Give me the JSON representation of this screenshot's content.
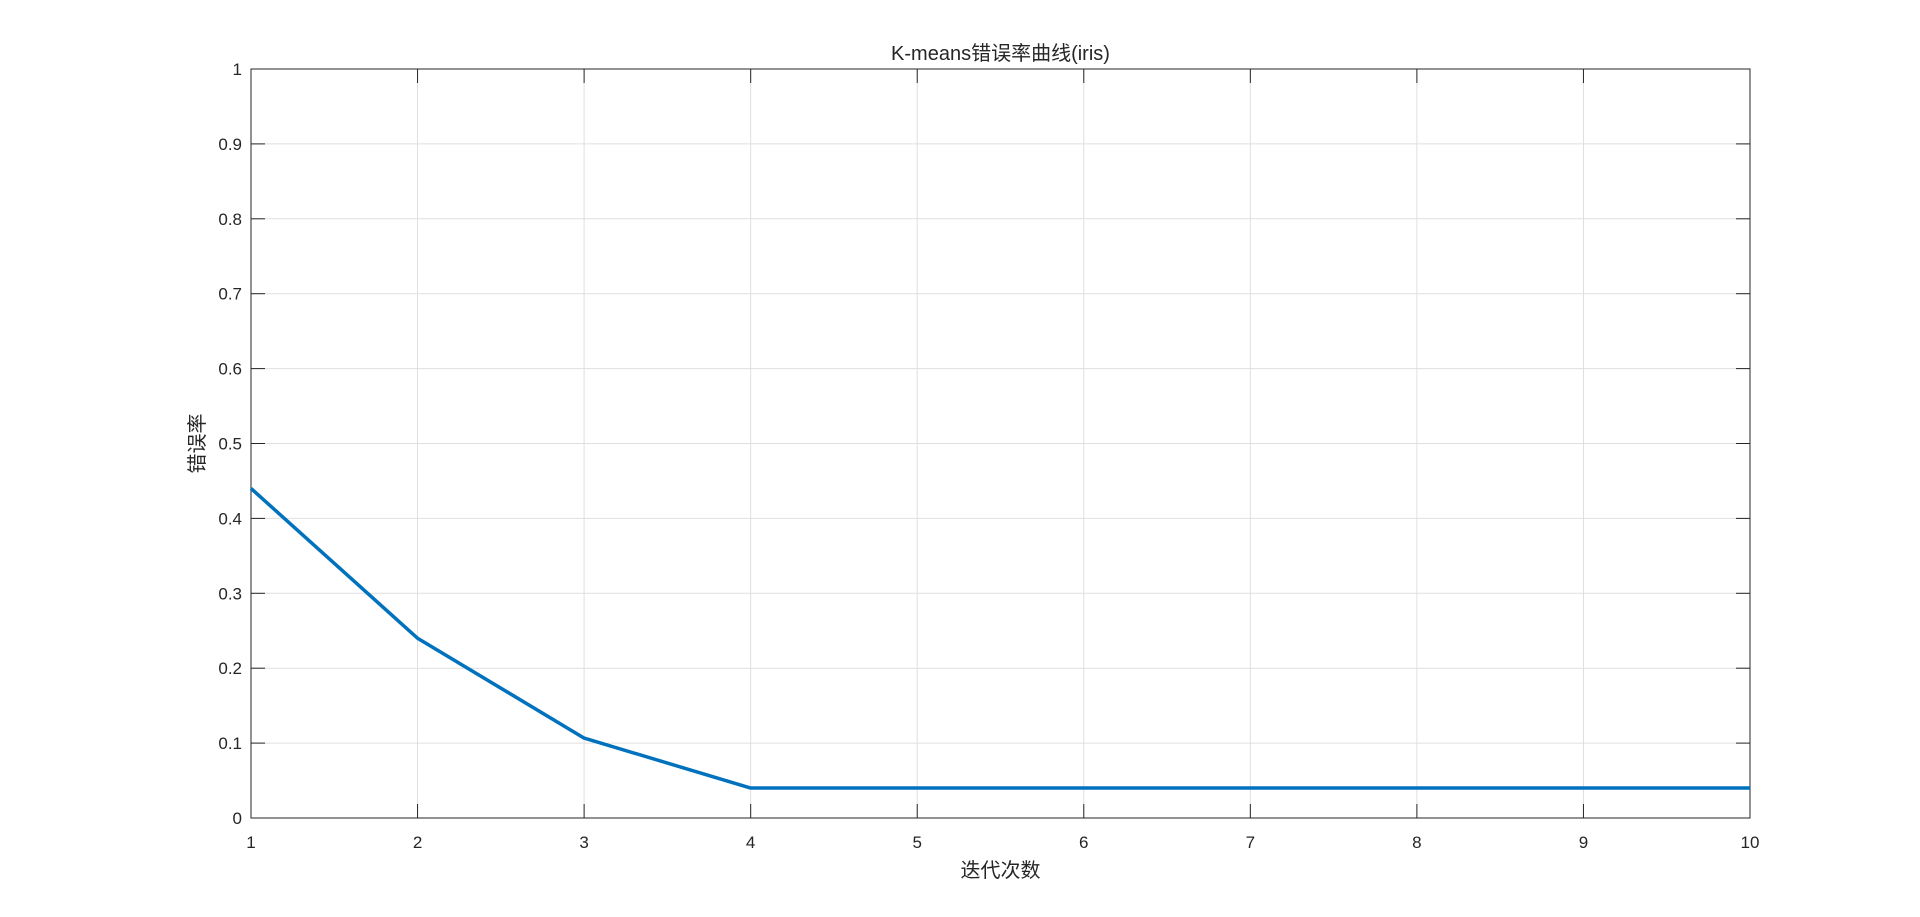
{
  "chart_data": {
    "type": "line",
    "title": "K-means错误率曲线(iris)",
    "xlabel": "迭代次数",
    "ylabel": "错误率",
    "x": [
      1,
      2,
      3,
      4,
      5,
      6,
      7,
      8,
      9,
      10
    ],
    "series": [
      {
        "values": [
          0.44,
          0.24,
          0.1067,
          0.04,
          0.04,
          0.04,
          0.04,
          0.04,
          0.04,
          0.04
        ],
        "color": "#0072BD"
      }
    ],
    "xlim": [
      1,
      10
    ],
    "ylim": [
      0,
      1
    ],
    "xticks": [
      "1",
      "2",
      "3",
      "4",
      "5",
      "6",
      "7",
      "8",
      "9",
      "10"
    ],
    "yticks": [
      "0",
      "0.1",
      "0.2",
      "0.3",
      "0.4",
      "0.5",
      "0.6",
      "0.7",
      "0.8",
      "0.9",
      "1"
    ],
    "grid": true,
    "legend": "none"
  }
}
